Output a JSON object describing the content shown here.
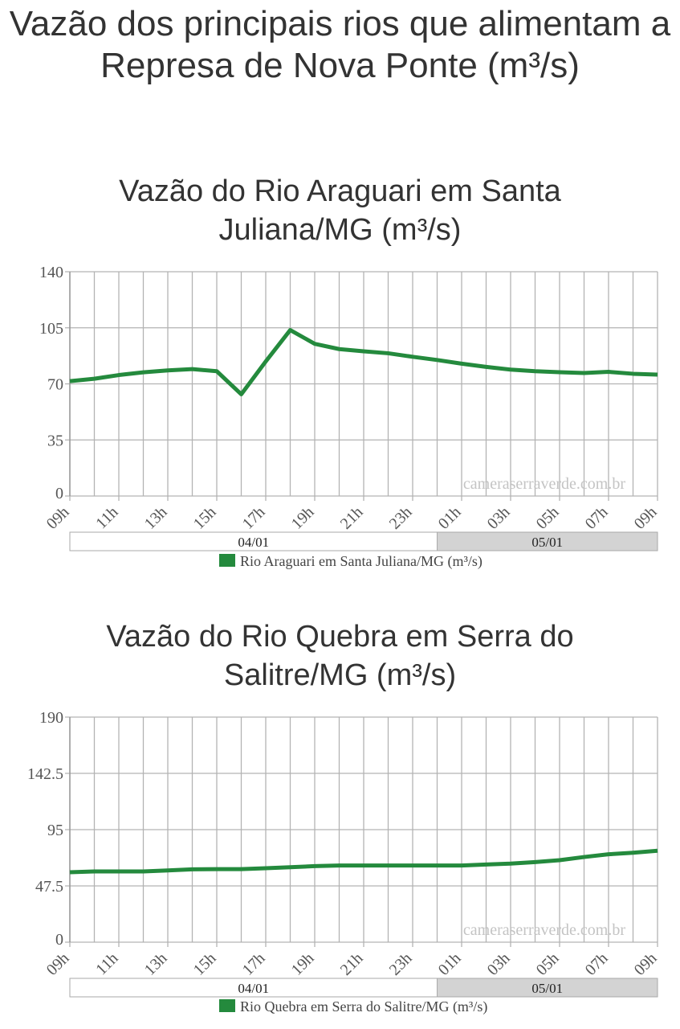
{
  "title": "Vazão dos principais rios que alimentam a Represa de Nova Ponte (m³/s)",
  "watermark": "cameraserraverde.com.br",
  "colors": {
    "series": "#248a3d",
    "grid": "#b3b3b3",
    "date_band_alt": "#d3d3d3"
  },
  "chart_data": [
    {
      "type": "line",
      "title": "Vazão do Rio Araguari em Santa Juliana/MG (m³/s)",
      "ylim": [
        0,
        140
      ],
      "yticks": [
        "0",
        "35",
        "70",
        "105",
        "140"
      ],
      "ytick_values": [
        0,
        35,
        70,
        105,
        140
      ],
      "xtick_labels": [
        "09h",
        "11h",
        "13h",
        "15h",
        "17h",
        "19h",
        "21h",
        "23h",
        "01h",
        "03h",
        "05h",
        "07h",
        "09h"
      ],
      "date_bands": [
        {
          "label": "04/01",
          "hours": 15
        },
        {
          "label": "05/01",
          "hours": 9
        }
      ],
      "legend": "Rio Araguari em Santa Juliana/MG (m³/s)",
      "values": [
        71.7,
        73.2,
        75.5,
        77.2,
        78.4,
        79.2,
        77.9,
        63.5,
        84,
        103.6,
        95,
        91.7,
        90.3,
        89.1,
        86.9,
        84.9,
        82.6,
        80.6,
        78.9,
        77.9,
        77.3,
        76.8,
        77.5,
        76.3,
        75.8
      ]
    },
    {
      "type": "line",
      "title": "Vazão do Rio Quebra em Serra do Salitre/MG (m³/s)",
      "ylim": [
        0,
        190
      ],
      "yticks": [
        "0",
        "47.5",
        "95",
        "142.5",
        "190"
      ],
      "ytick_values": [
        0,
        47.5,
        95,
        142.5,
        190
      ],
      "xtick_labels": [
        "09h",
        "11h",
        "13h",
        "15h",
        "17h",
        "19h",
        "21h",
        "23h",
        "01h",
        "03h",
        "05h",
        "07h",
        "09h"
      ],
      "date_bands": [
        {
          "label": "04/01",
          "hours": 15
        },
        {
          "label": "05/01",
          "hours": 9
        }
      ],
      "legend": "Rio Quebra em Serra do Salitre/MG (m³/s)",
      "values": [
        59.0,
        59.7,
        59.7,
        59.7,
        60.6,
        61.5,
        61.7,
        61.7,
        62.4,
        63.3,
        64.2,
        64.7,
        64.7,
        64.7,
        64.7,
        64.7,
        64.7,
        65.6,
        66.3,
        67.6,
        69.2,
        71.9,
        74.2,
        75.5,
        77.2
      ]
    }
  ]
}
